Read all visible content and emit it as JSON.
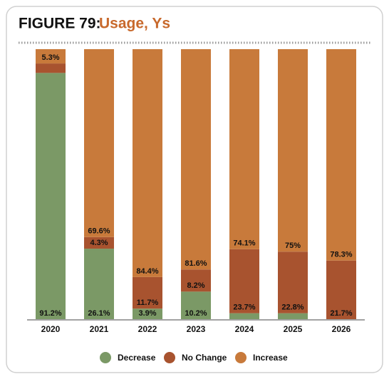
{
  "chart_data": {
    "type": "stacked_bar",
    "title_prefix": "FIGURE 79:",
    "title": "Usage, Ys",
    "categories": [
      "2020",
      "2021",
      "2022",
      "2023",
      "2024",
      "2025",
      "2026"
    ],
    "ylim": [
      0,
      100
    ],
    "legend": "bottom",
    "series": [
      {
        "name": "Decrease",
        "color": "#7b9966",
        "values": [
          91.2,
          26.1,
          3.9,
          10.2,
          2.2,
          2.2,
          0
        ],
        "value_labels": [
          "91.2%",
          "26.1%",
          "3.9%",
          "10.2%",
          null,
          null,
          null
        ]
      },
      {
        "name": "No Change",
        "color": "#a8532f",
        "values": [
          3.5,
          4.3,
          11.7,
          8.2,
          23.7,
          22.8,
          21.7
        ],
        "value_labels": [
          null,
          "4.3%",
          "11.7%",
          "8.2%",
          "23.7%",
          "22.8%",
          "21.7%"
        ]
      },
      {
        "name": "Increase",
        "color": "#c87a3b",
        "values": [
          5.3,
          69.6,
          84.4,
          81.6,
          74.1,
          75,
          78.3
        ],
        "value_labels": [
          "5.3%",
          "69.6%",
          "84.4%",
          "81.6%",
          "74.1%",
          "75%",
          "78.3%"
        ]
      }
    ]
  }
}
